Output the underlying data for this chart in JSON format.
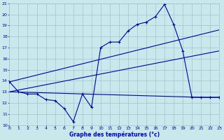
{
  "bg_color": "#c8e8ec",
  "grid_color": "#a0c4cc",
  "line_color": "#0000aa",
  "xlabel": "Graphe des températures (°c)",
  "xlabel_color": "#0000cc",
  "ylim": [
    10,
    21
  ],
  "xlim": [
    0,
    23
  ],
  "yticks": [
    10,
    11,
    12,
    13,
    14,
    15,
    16,
    17,
    18,
    19,
    20,
    21
  ],
  "xticks": [
    0,
    1,
    2,
    3,
    4,
    5,
    6,
    7,
    8,
    9,
    10,
    11,
    12,
    13,
    14,
    15,
    16,
    17,
    18,
    19,
    20,
    21,
    22,
    23
  ],
  "series_temp_x": [
    0,
    1,
    2,
    3,
    4,
    5,
    6,
    7,
    8,
    9,
    10,
    11,
    12,
    13,
    14,
    15,
    16,
    17,
    18,
    19,
    20,
    21,
    22,
    23
  ],
  "series_temp_y": [
    13.9,
    13.0,
    12.8,
    12.8,
    12.3,
    12.2,
    11.5,
    10.3,
    12.8,
    11.6,
    17.0,
    17.5,
    17.5,
    18.5,
    19.1,
    19.3,
    19.8,
    20.9,
    19.1,
    16.7,
    12.5,
    12.5,
    12.5,
    12.5
  ],
  "series2_x": [
    0,
    23
  ],
  "series2_y": [
    13.9,
    18.6
  ],
  "series3_x": [
    0,
    23
  ],
  "series3_y": [
    13.0,
    16.7
  ],
  "series4_x": [
    0,
    21,
    23
  ],
  "series4_y": [
    13.0,
    12.5,
    12.5
  ],
  "figsize": [
    3.2,
    2.0
  ],
  "dpi": 100
}
